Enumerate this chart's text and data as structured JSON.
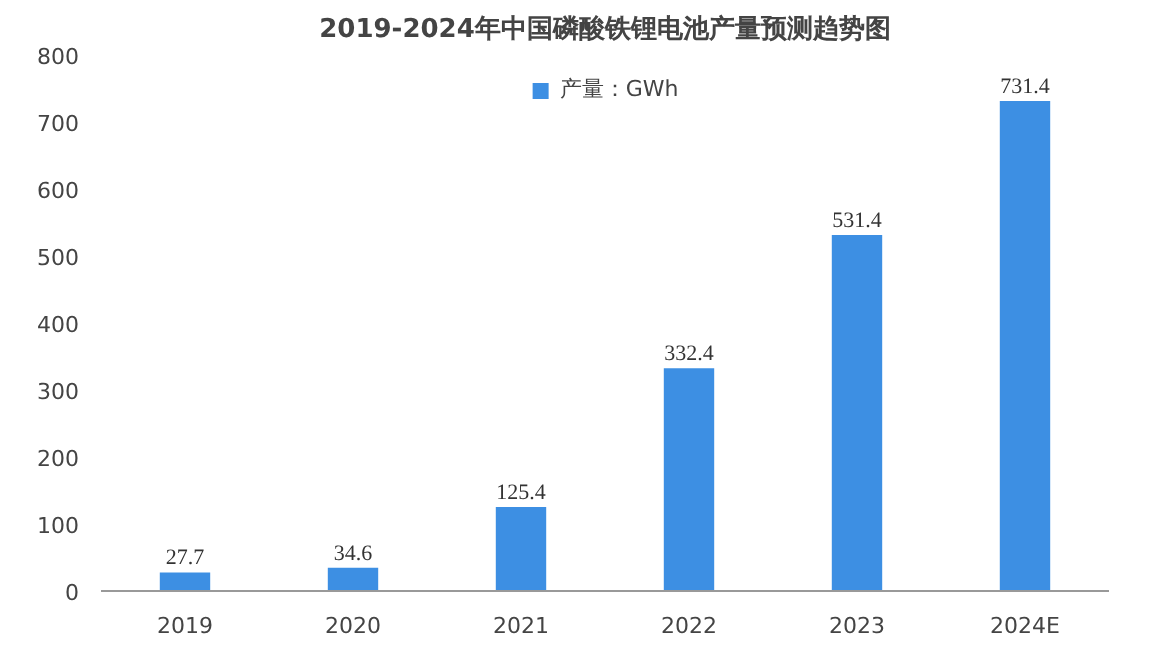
{
  "chart_data": {
    "type": "bar",
    "title": "2019-2024年中国磷酸铁锂电池产量预测趋势图",
    "categories": [
      "2019",
      "2020",
      "2021",
      "2022",
      "2023",
      "2024E"
    ],
    "series": [
      {
        "name": "产量：GWh",
        "color": "#3d8fe3",
        "values": [
          27.7,
          34.6,
          125.4,
          332.4,
          531.4,
          731.4
        ]
      }
    ],
    "ylim": [
      0,
      800
    ],
    "yticks": [
      0,
      100,
      200,
      300,
      400,
      500,
      600,
      700,
      800
    ],
    "data_labels": true,
    "grid": false,
    "legend": "top"
  }
}
